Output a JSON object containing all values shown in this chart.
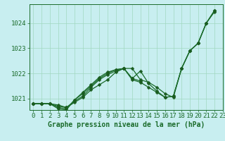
{
  "xlabel": "Graphe pression niveau de la mer (hPa)",
  "xlim": [
    -0.5,
    23
  ],
  "ylim": [
    1020.55,
    1024.75
  ],
  "yticks": [
    1021,
    1022,
    1023,
    1024
  ],
  "xticks": [
    0,
    1,
    2,
    3,
    4,
    5,
    6,
    7,
    8,
    9,
    10,
    11,
    12,
    13,
    14,
    15,
    16,
    17,
    18,
    19,
    20,
    21,
    22,
    23
  ],
  "bg_color": "#c8eef0",
  "grid_color": "#a0d8c0",
  "line_color": "#1a6b2a",
  "marker_color": "#1a5c20",
  "lines": [
    {
      "x": [
        0,
        1,
        2,
        3,
        4,
        5,
        6,
        7,
        8,
        9,
        10,
        11,
        12,
        13,
        14,
        15,
        16,
        17,
        18,
        19,
        20,
        21,
        22
      ],
      "y": [
        1020.8,
        1020.8,
        1020.8,
        1020.75,
        1020.65,
        1020.85,
        1021.05,
        1021.35,
        1021.55,
        1021.75,
        1022.05,
        1022.2,
        1022.2,
        1021.75,
        1021.65,
        1021.45,
        1021.2,
        1021.05,
        1022.2,
        1022.9,
        1023.2,
        1024.0,
        1024.45
      ]
    },
    {
      "x": [
        0,
        1,
        2,
        3,
        4,
        5,
        6,
        7,
        8,
        9,
        10,
        11,
        12,
        13
      ],
      "y": [
        1020.8,
        1020.8,
        1020.8,
        1020.7,
        1020.65,
        1020.9,
        1021.1,
        1021.45,
        1021.75,
        1021.95,
        1022.1,
        1022.2,
        1021.8,
        1021.7
      ]
    },
    {
      "x": [
        0,
        1,
        2,
        3,
        4,
        5,
        6,
        7,
        8,
        9,
        10,
        11,
        12,
        13,
        14,
        15,
        16,
        17,
        18,
        19,
        20,
        21,
        22
      ],
      "y": [
        1020.8,
        1020.8,
        1020.8,
        1020.65,
        1020.6,
        1020.95,
        1021.2,
        1021.5,
        1021.8,
        1022.0,
        1022.15,
        1022.2,
        1021.8,
        1022.1,
        1021.6,
        1021.3,
        1021.05,
        1021.1,
        1022.2,
        1022.9,
        1023.2,
        1024.0,
        1024.5
      ]
    },
    {
      "x": [
        0,
        1,
        2,
        3,
        4,
        5,
        6,
        7,
        8,
        9,
        10,
        11,
        12,
        13,
        14,
        15,
        16,
        17,
        18,
        19,
        20,
        21,
        22
      ],
      "y": [
        1020.8,
        1020.8,
        1020.8,
        1020.6,
        1020.55,
        1020.95,
        1021.25,
        1021.55,
        1021.85,
        1022.05,
        1022.15,
        1022.2,
        1021.75,
        1021.65,
        1021.45,
        1021.25,
        1021.05,
        1021.1,
        1022.2,
        1022.9,
        1023.2,
        1024.0,
        1024.5
      ]
    }
  ],
  "font_color": "#1a6b2a",
  "tick_fontsize": 6.5,
  "xlabel_fontsize": 7.0,
  "marker_size": 2.5,
  "linewidth": 0.9
}
